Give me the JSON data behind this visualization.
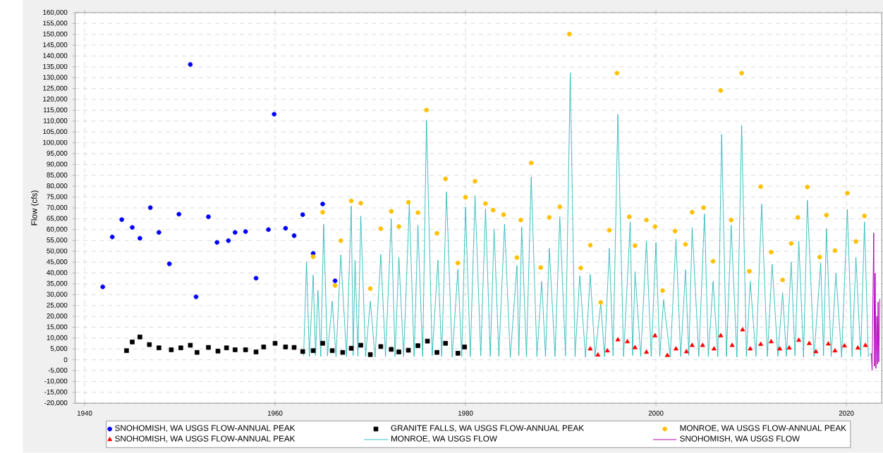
{
  "chart_data": {
    "type": "scatter",
    "ylabel": "Flow (cfs)",
    "xlim": [
      1939,
      2023.7
    ],
    "xticks": [
      1940,
      1960,
      1980,
      2000,
      2020
    ],
    "ylim": [
      -20000,
      160000
    ],
    "yticks": [
      {
        "value": -20000,
        "label": "-20,000"
      },
      {
        "value": -15000,
        "label": "-15,000"
      },
      {
        "value": -10000,
        "label": "-10,000"
      },
      {
        "value": -5000,
        "label": "-5,000"
      },
      0,
      {
        "value": 5000,
        "label": "5,000"
      },
      {
        "value": 10000,
        "label": "10,000"
      },
      {
        "value": 15000,
        "label": "15,000"
      },
      {
        "value": 20000,
        "label": "20,000"
      },
      {
        "value": 25000,
        "label": "25,000"
      },
      {
        "value": 30000,
        "label": "30,000"
      },
      {
        "value": 35000,
        "label": "35,000"
      },
      {
        "value": 40000,
        "label": "40,000"
      },
      {
        "value": 45000,
        "label": "45,000"
      },
      {
        "value": 50000,
        "label": "50,000"
      },
      {
        "value": 55000,
        "label": "55,000"
      },
      {
        "value": 60000,
        "label": "60,000"
      },
      {
        "value": 65000,
        "label": "65,000"
      },
      {
        "value": 70000,
        "label": "70,000"
      },
      {
        "value": 75000,
        "label": "75,000"
      },
      {
        "value": 80000,
        "label": "80,000"
      },
      {
        "value": 85000,
        "label": "85,000"
      },
      {
        "value": 90000,
        "label": "90,000"
      },
      {
        "value": 95000,
        "label": "95,000"
      },
      {
        "value": 100000,
        "label": "100,000"
      },
      {
        "value": 105000,
        "label": "105,000"
      },
      {
        "value": 110000,
        "label": "110,000"
      },
      {
        "value": 115000,
        "label": "115,000"
      },
      {
        "value": 120000,
        "label": "120,000"
      },
      {
        "value": 125000,
        "label": "125,000"
      },
      {
        "value": 130000,
        "label": "130,000"
      },
      {
        "value": 135000,
        "label": "135,000"
      },
      {
        "value": 140000,
        "label": "140,000"
      },
      {
        "value": 145000,
        "label": "145,000"
      },
      {
        "value": 150000,
        "label": "150,000"
      },
      {
        "value": 155000,
        "label": "155,000"
      },
      {
        "value": 160000,
        "label": "160,000"
      }
    ],
    "grid": true,
    "legend": "bottom",
    "series": [
      {
        "name": "SNOHOMISH, WA USGS FLOW-ANNUAL PEAK",
        "marker": "circle",
        "color": "#0000ff",
        "x": [
          1941.9,
          1942.9,
          1943.9,
          1945.0,
          1945.8,
          1946.9,
          1947.8,
          1948.9,
          1949.9,
          1951.1,
          1951.7,
          1953.0,
          1953.9,
          1955.1,
          1955.8,
          1956.9,
          1958.0,
          1959.3,
          1959.9,
          1961.1,
          1962.0,
          1962.9,
          1964.0,
          1965.0,
          1966.3
        ],
        "values": [
          33600,
          56600,
          64600,
          61000,
          56000,
          70100,
          58700,
          44200,
          67100,
          136100,
          29000,
          65900,
          54100,
          54900,
          58700,
          59100,
          37600,
          60000,
          113200,
          60600,
          57200,
          66900,
          49000,
          71800,
          36400
        ]
      },
      {
        "name": "GRANITE FALLS, WA USGS FLOW-ANNUAL PEAK",
        "marker": "square",
        "color": "#000000",
        "x": [
          1944.4,
          1945.0,
          1945.8,
          1946.8,
          1947.8,
          1949.1,
          1950.1,
          1951.1,
          1951.8,
          1953.0,
          1954.0,
          1954.9,
          1955.8,
          1956.9,
          1958.0,
          1958.8,
          1960.0,
          1961.1,
          1962.0,
          1962.9,
          1964.0,
          1965.0,
          1966.0,
          1967.1,
          1968.0,
          1969.0,
          1970.0,
          1971.1,
          1972.2,
          1973.0,
          1974.0,
          1975.0,
          1976.0,
          1977.0,
          1977.9,
          1979.2,
          1979.9
        ],
        "values": [
          4200,
          8200,
          10500,
          7000,
          5500,
          4600,
          5500,
          6700,
          3400,
          5700,
          4000,
          5500,
          4600,
          4600,
          3600,
          5900,
          7600,
          5900,
          5700,
          3800,
          4200,
          7600,
          4200,
          3400,
          5300,
          6700,
          2400,
          6100,
          4800,
          3600,
          4400,
          6500,
          8600,
          3400,
          7600,
          3000,
          5900
        ]
      },
      {
        "name": "MONROE, WA USGS FLOW-ANNUAL PEAK",
        "marker": "circle",
        "color": "#ffc000",
        "x": [
          1964.0,
          1965.0,
          1966.3,
          1966.9,
          1968.0,
          1969.0,
          1970.0,
          1971.1,
          1972.2,
          1973.0,
          1974.0,
          1975.0,
          1975.9,
          1977.0,
          1977.9,
          1979.2,
          1980.0,
          1981.0,
          1982.1,
          1982.9,
          1984.0,
          1985.4,
          1985.8,
          1986.9,
          1987.9,
          1988.8,
          1989.9,
          1990.9,
          1992.1,
          1993.1,
          1994.2,
          1995.1,
          1995.9,
          1997.2,
          1997.8,
          1999.0,
          1999.9,
          2000.7,
          2002.0,
          2003.1,
          2003.8,
          2005.0,
          2006.0,
          2006.8,
          2007.9,
          2009.0,
          2009.8,
          2011.0,
          2012.1,
          2013.3,
          2014.2,
          2014.9,
          2015.9,
          2017.2,
          2017.9,
          2018.8,
          2020.1,
          2021.0,
          2021.9
        ],
        "values": [
          47500,
          68000,
          34200,
          54900,
          73200,
          72200,
          32800,
          60400,
          68400,
          61400,
          72600,
          67800,
          115100,
          58300,
          83400,
          44600,
          74900,
          82300,
          72000,
          69000,
          66900,
          47100,
          64400,
          90700,
          42500,
          65600,
          70500,
          150100,
          42300,
          52800,
          26400,
          59700,
          132100,
          65900,
          52600,
          64400,
          61400,
          31900,
          59300,
          53200,
          68000,
          70100,
          45400,
          124100,
          64400,
          132100,
          40800,
          79800,
          49600,
          36800,
          53600,
          65600,
          79600,
          47300,
          66700,
          50300,
          76800,
          54500,
          66300
        ]
      },
      {
        "name": "SNOHOMISH, WA USGS FLOW-ANNUAL PEAK",
        "marker": "triangle",
        "color": "#ff0000",
        "x": [
          1993.1,
          1993.9,
          1994.9,
          1996.0,
          1997.0,
          1997.8,
          1999.0,
          1999.9,
          2001.2,
          2002.1,
          2003.2,
          2003.8,
          2004.9,
          2006.1,
          2006.8,
          2008.0,
          2009.1,
          2009.9,
          2011.0,
          2012.1,
          2013.0,
          2014.0,
          2015.0,
          2016.1,
          2016.8,
          2018.1,
          2018.8,
          2019.8,
          2021.2,
          2022.0
        ],
        "values": [
          5000,
          2200,
          4100,
          9200,
          8300,
          5600,
          3500,
          11100,
          2000,
          5000,
          3700,
          6600,
          6600,
          5000,
          11100,
          6600,
          13800,
          5000,
          7100,
          8300,
          5000,
          5400,
          9000,
          7500,
          3700,
          7300,
          4100,
          6400,
          5400,
          6600
        ]
      },
      {
        "name": "MONROE, WA USGS FLOW",
        "type": "line",
        "line_style": "dotted",
        "color": "#1fb5b5",
        "x": [
          1963.0,
          1963.3,
          1963.6,
          1964.0,
          1964.25,
          1964.5,
          1964.8,
          1965.1,
          1965.5,
          1966.0,
          1966.4,
          1966.9,
          1967.5,
          1968.0,
          1968.2,
          1968.4,
          1968.7,
          1969.0,
          1969.5,
          1970.0,
          1970.5,
          1971.1,
          1971.6,
          1972.2,
          1972.6,
          1973.0,
          1973.5,
          1974.1,
          1974.6,
          1975.0,
          1975.5,
          1975.9,
          1976.5,
          1977.1,
          1977.5,
          1978.0,
          1978.6,
          1979.2,
          1979.6,
          1980.0,
          1980.5,
          1981.0,
          1981.6,
          1982.1,
          1982.6,
          1983.0,
          1983.5,
          1984.1,
          1984.7,
          1985.4,
          1985.6,
          1985.9,
          1986.4,
          1986.9,
          1987.5,
          1988.0,
          1988.4,
          1988.8,
          1989.4,
          1989.9,
          1990.5,
          1991.0,
          1991.5,
          1992.0,
          1992.6,
          1993.1,
          1993.6,
          1994.2,
          1994.6,
          1995.1,
          1995.5,
          1996.0,
          1996.6,
          1997.3,
          1997.55,
          1997.8,
          1998.4,
          1999.0,
          1999.5,
          2000.0,
          2000.4,
          2000.8,
          2001.5,
          2002.1,
          2002.6,
          2003.1,
          2003.45,
          2003.8,
          2004.5,
          2005.1,
          2005.5,
          2006.0,
          2006.5,
          2006.9,
          2007.4,
          2007.9,
          2008.5,
          2009.0,
          2009.5,
          2009.9,
          2010.5,
          2011.1,
          2011.7,
          2012.2,
          2012.8,
          2013.3,
          2013.7,
          2014.2,
          2014.6,
          2015.0,
          2015.5,
          2015.9,
          2016.6,
          2017.3,
          2017.6,
          2017.9,
          2018.4,
          2018.9,
          2019.5,
          2020.1,
          2020.6,
          2021.0,
          2021.5,
          2021.9,
          2022.3,
          2022.6
        ],
        "values": [
          2000,
          45100,
          1500,
          39000,
          2000,
          32000,
          1500,
          62500,
          1800,
          27000,
          1500,
          48300,
          1500,
          70900,
          2000,
          45800,
          1500,
          66200,
          1500,
          27000,
          1200,
          48600,
          1500,
          64900,
          1500,
          47200,
          1500,
          71800,
          1500,
          62000,
          1500,
          110400,
          1800,
          45900,
          1500,
          77400,
          1200,
          41700,
          1500,
          70400,
          1500,
          75700,
          1800,
          69700,
          1500,
          60400,
          1500,
          62500,
          1200,
          43500,
          2000,
          61200,
          1500,
          84300,
          1500,
          36100,
          1500,
          51400,
          1500,
          65900,
          1800,
          132200,
          1500,
          38800,
          1200,
          39300,
          1500,
          26100,
          1500,
          51400,
          1800,
          113100,
          1500,
          63500,
          2000,
          40600,
          1500,
          54600,
          1500,
          54000,
          1500,
          27700,
          1200,
          55600,
          1500,
          41400,
          2000,
          60900,
          1500,
          67200,
          1500,
          36100,
          1500,
          103800,
          1500,
          62000,
          1200,
          108000,
          1500,
          36100,
          1500,
          71800,
          1500,
          44000,
          1500,
          30900,
          1500,
          45100,
          1800,
          54600,
          1200,
          73600,
          1500,
          44600,
          1800,
          60400,
          1500,
          39800,
          1200,
          69300,
          1500,
          47200,
          1500,
          63500,
          1500,
          3000
        ]
      },
      {
        "name": "SNOHOMISH, WA USGS FLOW",
        "type": "line",
        "line_style": "solid",
        "color": "#b000b8",
        "x": [
          2022.61,
          2022.7,
          2022.87,
          2022.95,
          2023.02,
          2023.1,
          2023.2,
          2023.27,
          2023.33,
          2023.4,
          2023.5
        ],
        "values": [
          3000,
          -5000,
          58500,
          -3000,
          39800,
          -4000,
          20000,
          -2000,
          26700,
          -1000,
          28000
        ]
      }
    ]
  }
}
